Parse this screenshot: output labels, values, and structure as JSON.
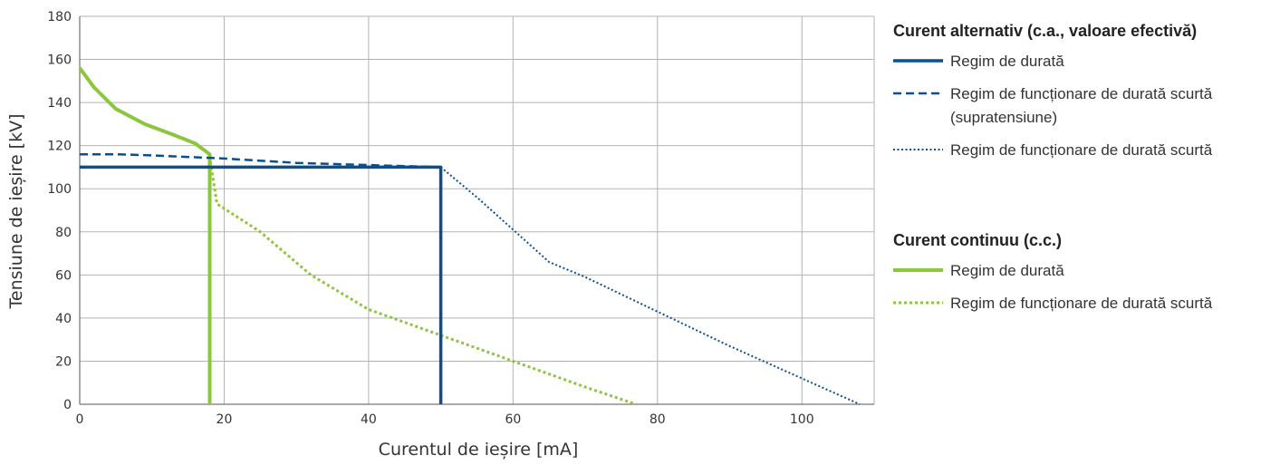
{
  "chart_data": {
    "type": "line",
    "xlabel": "Curentul de ieșire [mA]",
    "ylabel": "Tensiune de ieșire [kV]",
    "xlim": [
      0,
      110
    ],
    "ylim": [
      0,
      180
    ],
    "xticks": [
      "0",
      "20",
      "40",
      "60",
      "80",
      "100"
    ],
    "yticks": [
      "0",
      "20",
      "40",
      "60",
      "80",
      "100",
      "120",
      "140",
      "160",
      "180"
    ],
    "grid": true,
    "legend_position": "right",
    "colors": {
      "ac": "#0b4f8e",
      "dc": "#8cc63f"
    },
    "legend": [
      {
        "title": "Curent alternativ (c.a., valoare efectivă)",
        "items": [
          {
            "label": [
              "Regim de durată"
            ],
            "style": "solid"
          },
          {
            "label": [
              "Regim de funcționare de durată scurtă",
              "(supratensiune)"
            ],
            "style": "dashed"
          },
          {
            "label": [
              "Regim de funcționare de durată scurtă"
            ],
            "style": "dotted"
          }
        ]
      },
      {
        "title": "Curent continuu (c.c.)",
        "items": [
          {
            "label": [
              "Regim de durată"
            ],
            "style": "solid"
          },
          {
            "label": [
              "Regim de funcționare de durată scurtă"
            ],
            "style": "dotted"
          }
        ]
      }
    ],
    "series": [
      {
        "group": "ac",
        "style": "solid",
        "points": [
          [
            0,
            110
          ],
          [
            50,
            110
          ],
          [
            50,
            0
          ]
        ]
      },
      {
        "group": "ac",
        "style": "dashed",
        "points": [
          [
            0,
            116
          ],
          [
            5,
            116
          ],
          [
            10,
            115.5
          ],
          [
            20,
            114
          ],
          [
            30,
            112
          ],
          [
            40,
            111
          ],
          [
            50,
            110
          ]
        ]
      },
      {
        "group": "ac",
        "style": "dotted",
        "points": [
          [
            50,
            110
          ],
          [
            55,
            96
          ],
          [
            60,
            81
          ],
          [
            65,
            66
          ],
          [
            70,
            59
          ],
          [
            80,
            43
          ],
          [
            90,
            27
          ],
          [
            100,
            12
          ],
          [
            108,
            0
          ]
        ]
      },
      {
        "group": "dc",
        "style": "solid",
        "points": [
          [
            0,
            156
          ],
          [
            2,
            147
          ],
          [
            5,
            137
          ],
          [
            9,
            130
          ],
          [
            13,
            125
          ],
          [
            16,
            121
          ],
          [
            18,
            116
          ],
          [
            18,
            0
          ]
        ]
      },
      {
        "group": "dc",
        "style": "dotted",
        "points": [
          [
            18,
            115
          ],
          [
            19,
            93
          ],
          [
            25,
            80
          ],
          [
            32,
            60
          ],
          [
            40,
            44
          ],
          [
            50,
            32
          ],
          [
            60,
            20
          ],
          [
            70,
            8
          ],
          [
            77,
            0
          ]
        ]
      }
    ]
  }
}
